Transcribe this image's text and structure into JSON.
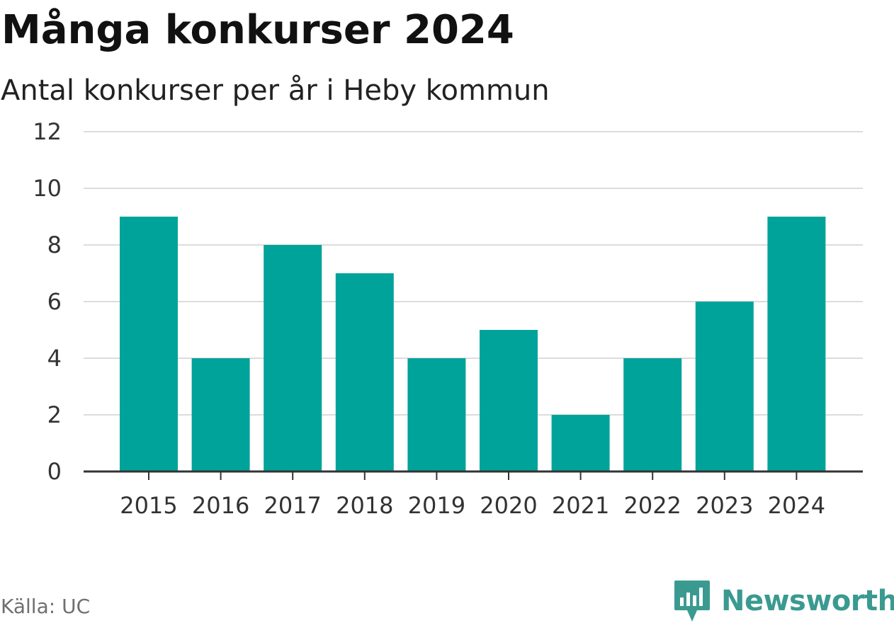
{
  "chart_data": {
    "type": "bar",
    "title": "Många konkurser 2024",
    "subtitle": "Antal konkurser per år i Heby kommun",
    "categories": [
      "2015",
      "2016",
      "2017",
      "2018",
      "2019",
      "2020",
      "2021",
      "2022",
      "2023",
      "2024"
    ],
    "values": [
      9,
      4,
      8,
      7,
      4,
      5,
      2,
      4,
      6,
      9
    ],
    "ylim": [
      0,
      12
    ],
    "yticks": [
      "0",
      "2",
      "4",
      "6",
      "8",
      "10",
      "12"
    ],
    "xlabel": "",
    "ylabel": "",
    "grid": true,
    "bar_color": "#00a39a"
  },
  "footer": {
    "source": "Källa: UC",
    "brand": "Newsworthy",
    "brand_icon": "newsworthy-logo-icon",
    "brand_color": "#3a9a90"
  }
}
